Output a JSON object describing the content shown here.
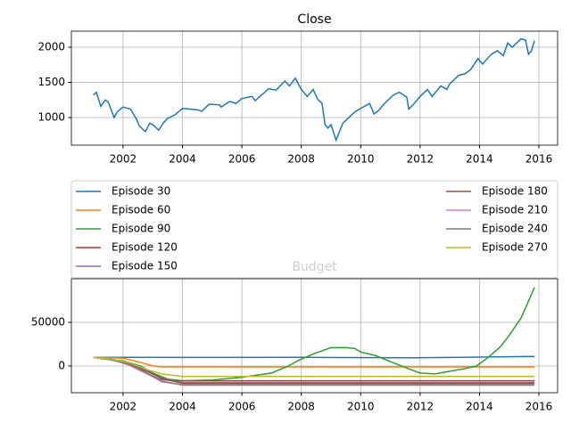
{
  "chart_data": [
    {
      "type": "line",
      "title": "Close",
      "color": "#1f77b4",
      "grid": true,
      "xlim": [
        2000.26,
        2016.63
      ],
      "xticks": [
        2002,
        2004,
        2006,
        2008,
        2010,
        2012,
        2014,
        2016
      ],
      "ylim": [
        608,
        2228
      ],
      "yticks": [
        1000,
        1500,
        2000
      ],
      "x": [
        2001.0,
        2001.1,
        2001.25,
        2001.4,
        2001.5,
        2001.7,
        2001.8,
        2002.0,
        2002.25,
        2002.45,
        2002.55,
        2002.75,
        2002.9,
        2003.0,
        2003.2,
        2003.35,
        2003.5,
        2003.75,
        2004.0,
        2004.25,
        2004.5,
        2004.65,
        2004.9,
        2005.25,
        2005.3,
        2005.6,
        2005.8,
        2006.0,
        2006.35,
        2006.45,
        2006.9,
        2007.15,
        2007.45,
        2007.6,
        2007.8,
        2008.0,
        2008.2,
        2008.4,
        2008.55,
        2008.7,
        2008.8,
        2008.9,
        2009.0,
        2009.17,
        2009.4,
        2009.6,
        2009.8,
        2010.0,
        2010.3,
        2010.45,
        2010.6,
        2010.8,
        2011.1,
        2011.3,
        2011.55,
        2011.62,
        2011.8,
        2012.0,
        2012.25,
        2012.4,
        2012.7,
        2012.9,
        2013.0,
        2013.3,
        2013.5,
        2013.7,
        2013.95,
        2014.1,
        2014.4,
        2014.6,
        2014.8,
        2014.95,
        2015.1,
        2015.4,
        2015.55,
        2015.65,
        2015.75,
        2015.85
      ],
      "values": [
        1320,
        1360,
        1160,
        1250,
        1220,
        1000,
        1080,
        1150,
        1120,
        980,
        880,
        800,
        920,
        900,
        820,
        920,
        990,
        1040,
        1130,
        1120,
        1110,
        1090,
        1190,
        1180,
        1150,
        1230,
        1200,
        1270,
        1300,
        1240,
        1410,
        1390,
        1520,
        1450,
        1560,
        1400,
        1300,
        1400,
        1260,
        1200,
        900,
        850,
        900,
        680,
        920,
        1000,
        1080,
        1130,
        1200,
        1050,
        1100,
        1200,
        1320,
        1360,
        1290,
        1120,
        1200,
        1300,
        1400,
        1300,
        1450,
        1400,
        1480,
        1600,
        1620,
        1680,
        1840,
        1760,
        1900,
        1950,
        1880,
        2060,
        2000,
        2120,
        2100,
        1900,
        1950,
        2090
      ]
    },
    {
      "type": "line",
      "title": "Budget",
      "grid": true,
      "legend": "above",
      "xlim": [
        2000.26,
        2016.63
      ],
      "xticks": [
        2002,
        2004,
        2006,
        2008,
        2010,
        2012,
        2014,
        2016
      ],
      "ylim": [
        -30600,
        100000
      ],
      "yticks": [
        0,
        50000
      ],
      "series": [
        {
          "name": "Episode 30",
          "color": "#1f77b4",
          "x": [
            2001.0,
            2002.0,
            2004.0,
            2008.0,
            2011.8,
            2013.0,
            2015.85
          ],
          "values": [
            10000,
            10000,
            9800,
            9900,
            9500,
            9800,
            11000
          ]
        },
        {
          "name": "Episode 60",
          "color": "#ff7f0e",
          "x": [
            2001.0,
            2002.0,
            2002.6,
            2003.0,
            2003.3,
            2015.85
          ],
          "values": [
            10000,
            9000,
            4000,
            0,
            -1000,
            -1000
          ]
        },
        {
          "name": "Episode 90",
          "color": "#2ca02c",
          "x": [
            2001.0,
            2001.6,
            2002.0,
            2002.6,
            2003.0,
            2003.5,
            2004.0,
            2005.0,
            2006.0,
            2007.0,
            2007.5,
            2008.0,
            2008.5,
            2009.0,
            2009.5,
            2009.8,
            2010.0,
            2010.5,
            2011.0,
            2011.6,
            2012.0,
            2012.5,
            2013.0,
            2013.5,
            2013.9,
            2014.3,
            2014.7,
            2015.0,
            2015.4,
            2015.85
          ],
          "values": [
            10000,
            7000,
            6000,
            0,
            -8000,
            -15000,
            -17000,
            -16000,
            -13000,
            -8000,
            -1000,
            8000,
            15000,
            21000,
            21000,
            20000,
            16000,
            12000,
            5000,
            -3000,
            -8000,
            -9000,
            -6000,
            -3000,
            0,
            10000,
            22000,
            35000,
            55000,
            90000
          ]
        },
        {
          "name": "Episode 120",
          "color": "#d62728",
          "x": [
            2001.0,
            2001.6,
            2002.2,
            2002.8,
            2003.2,
            2003.7,
            2015.85
          ],
          "values": [
            10000,
            8000,
            3000,
            -8000,
            -15000,
            -17000,
            -17000
          ]
        },
        {
          "name": "Episode 150",
          "color": "#9467bd",
          "x": [
            2001.0,
            2001.6,
            2002.2,
            2002.8,
            2003.3,
            2004.0,
            2015.85
          ],
          "values": [
            10000,
            7000,
            4000,
            -5000,
            -15000,
            -19000,
            -19000
          ]
        },
        {
          "name": "Episode 180",
          "color": "#8c564b",
          "x": [
            2001.0,
            2001.6,
            2002.2,
            2002.8,
            2003.3,
            2004.0,
            2015.85
          ],
          "values": [
            10000,
            8000,
            2000,
            -6000,
            -14000,
            -20000,
            -20000
          ]
        },
        {
          "name": "Episode 210",
          "color": "#e377c2",
          "x": [
            2001.0,
            2001.6,
            2002.2,
            2002.8,
            2003.3,
            2004.0,
            2015.85
          ],
          "values": [
            10000,
            7500,
            1000,
            -9000,
            -17000,
            -22000,
            -22000
          ]
        },
        {
          "name": "Episode 240",
          "color": "#7f7f7f",
          "x": [
            2001.0,
            2001.6,
            2002.2,
            2002.8,
            2003.3,
            2004.0,
            2015.85
          ],
          "values": [
            10000,
            7000,
            2000,
            -8000,
            -18000,
            -21500,
            -21500
          ]
        },
        {
          "name": "Episode 270",
          "color": "#bcbd22",
          "x": [
            2001.0,
            2001.6,
            2002.2,
            2002.8,
            2003.3,
            2004.0,
            2015.85
          ],
          "values": [
            10000,
            8000,
            4000,
            -4000,
            -9000,
            -12000,
            -12000
          ]
        }
      ]
    }
  ]
}
